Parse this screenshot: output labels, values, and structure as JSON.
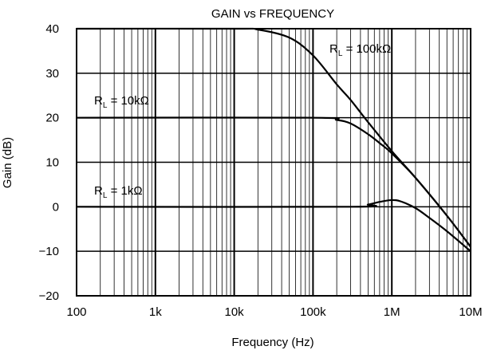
{
  "chart_data": {
    "type": "line",
    "title": "GAIN vs FREQUENCY",
    "xlabel": "Frequency (Hz)",
    "ylabel": "Gain (dB)",
    "x_scale": "log",
    "xlim": [
      100,
      10000000
    ],
    "ylim": [
      -20,
      40
    ],
    "grid": true,
    "x_ticks": [
      {
        "value": 100,
        "label": "100"
      },
      {
        "value": 1000,
        "label": "1k"
      },
      {
        "value": 10000,
        "label": "10k"
      },
      {
        "value": 100000,
        "label": "100k"
      },
      {
        "value": 1000000,
        "label": "1M"
      },
      {
        "value": 10000000,
        "label": "10M"
      }
    ],
    "y_ticks": [
      {
        "value": 40,
        "label": "40"
      },
      {
        "value": 30,
        "label": "30"
      },
      {
        "value": 20,
        "label": "20"
      },
      {
        "value": 10,
        "label": "10"
      },
      {
        "value": 0,
        "label": "0"
      },
      {
        "value": -10,
        "label": "−10"
      },
      {
        "value": -20,
        "label": "−20"
      }
    ],
    "series": [
      {
        "label_main": "R",
        "label_sub": "L",
        "label_rest": " = 100kΩ",
        "x": [
          100,
          10000,
          20000,
          50000,
          100000,
          200000,
          300000,
          500000,
          1000000,
          2000000,
          5000000,
          10000000
        ],
        "y": [
          40,
          40,
          39.8,
          38,
          34,
          27.5,
          24,
          19,
          12.5,
          6.5,
          -2,
          -9
        ]
      },
      {
        "label_main": "R",
        "label_sub": "L",
        "label_rest": " = 10kΩ",
        "x": [
          100,
          100000,
          200000,
          300000,
          500000,
          700000,
          1000000,
          2000000,
          5000000,
          10000000
        ],
        "y": [
          20,
          20,
          19.5,
          18.7,
          16.3,
          14.3,
          12,
          6.5,
          -2,
          -9
        ]
      },
      {
        "label_main": "R",
        "label_sub": "L",
        "label_rest": " = 1kΩ",
        "x": [
          100,
          300000,
          500000,
          700000,
          1000000,
          1300000,
          2000000,
          3000000,
          5000000,
          10000000
        ],
        "y": [
          0,
          0,
          0.5,
          1.1,
          1.5,
          1.2,
          -0.3,
          -2.5,
          -5.5,
          -10
        ]
      }
    ]
  }
}
